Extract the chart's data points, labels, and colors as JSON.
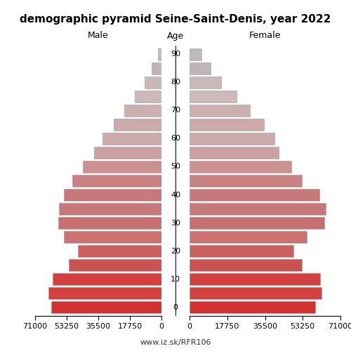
{
  "title": "demographic pyramid Seine-Saint-Denis, year 2022",
  "subtitle_male": "Male",
  "subtitle_female": "Female",
  "age_label": "Age",
  "url": "www.iz.sk/RFR106",
  "age_groups": [
    0,
    5,
    10,
    15,
    20,
    25,
    30,
    35,
    40,
    45,
    50,
    55,
    60,
    65,
    70,
    75,
    80,
    85,
    90
  ],
  "male": [
    62000,
    63500,
    61000,
    52000,
    47000,
    55000,
    58000,
    57500,
    55000,
    50000,
    44000,
    38000,
    33000,
    27000,
    21000,
    15000,
    9500,
    5500,
    2000
  ],
  "female": [
    59000,
    62000,
    61500,
    53000,
    49000,
    55000,
    63500,
    64000,
    61000,
    53000,
    48000,
    42000,
    40000,
    35000,
    28500,
    22000,
    15000,
    10000,
    5500
  ],
  "xlim": 71000,
  "xticks": [
    71000,
    53250,
    35500,
    17750,
    0
  ],
  "color_map": {
    "0": "#d43030",
    "5": "#d44040",
    "10": "#d44040",
    "15": "#cc5252",
    "20": "#cc6060",
    "25": "#cc7070",
    "30": "#c87070",
    "35": "#c87878",
    "40": "#c87878",
    "45": "#c88080",
    "50": "#cc9090",
    "55": "#cca0a0",
    "60": "#ccaaaa",
    "65": "#ccaaaa",
    "70": "#ccb0b0",
    "75": "#ccb8b8",
    "80": "#c8b8b8",
    "85": "#c0b4b4",
    "90": "#bcbcbc"
  },
  "edge_color": "#999999",
  "bar_height": 0.85,
  "background": "#ffffff",
  "title_fontsize": 11,
  "label_fontsize": 9,
  "tick_fontsize": 8,
  "age_tick_labels": [
    0,
    10,
    20,
    30,
    40,
    50,
    60,
    70,
    80,
    90
  ]
}
